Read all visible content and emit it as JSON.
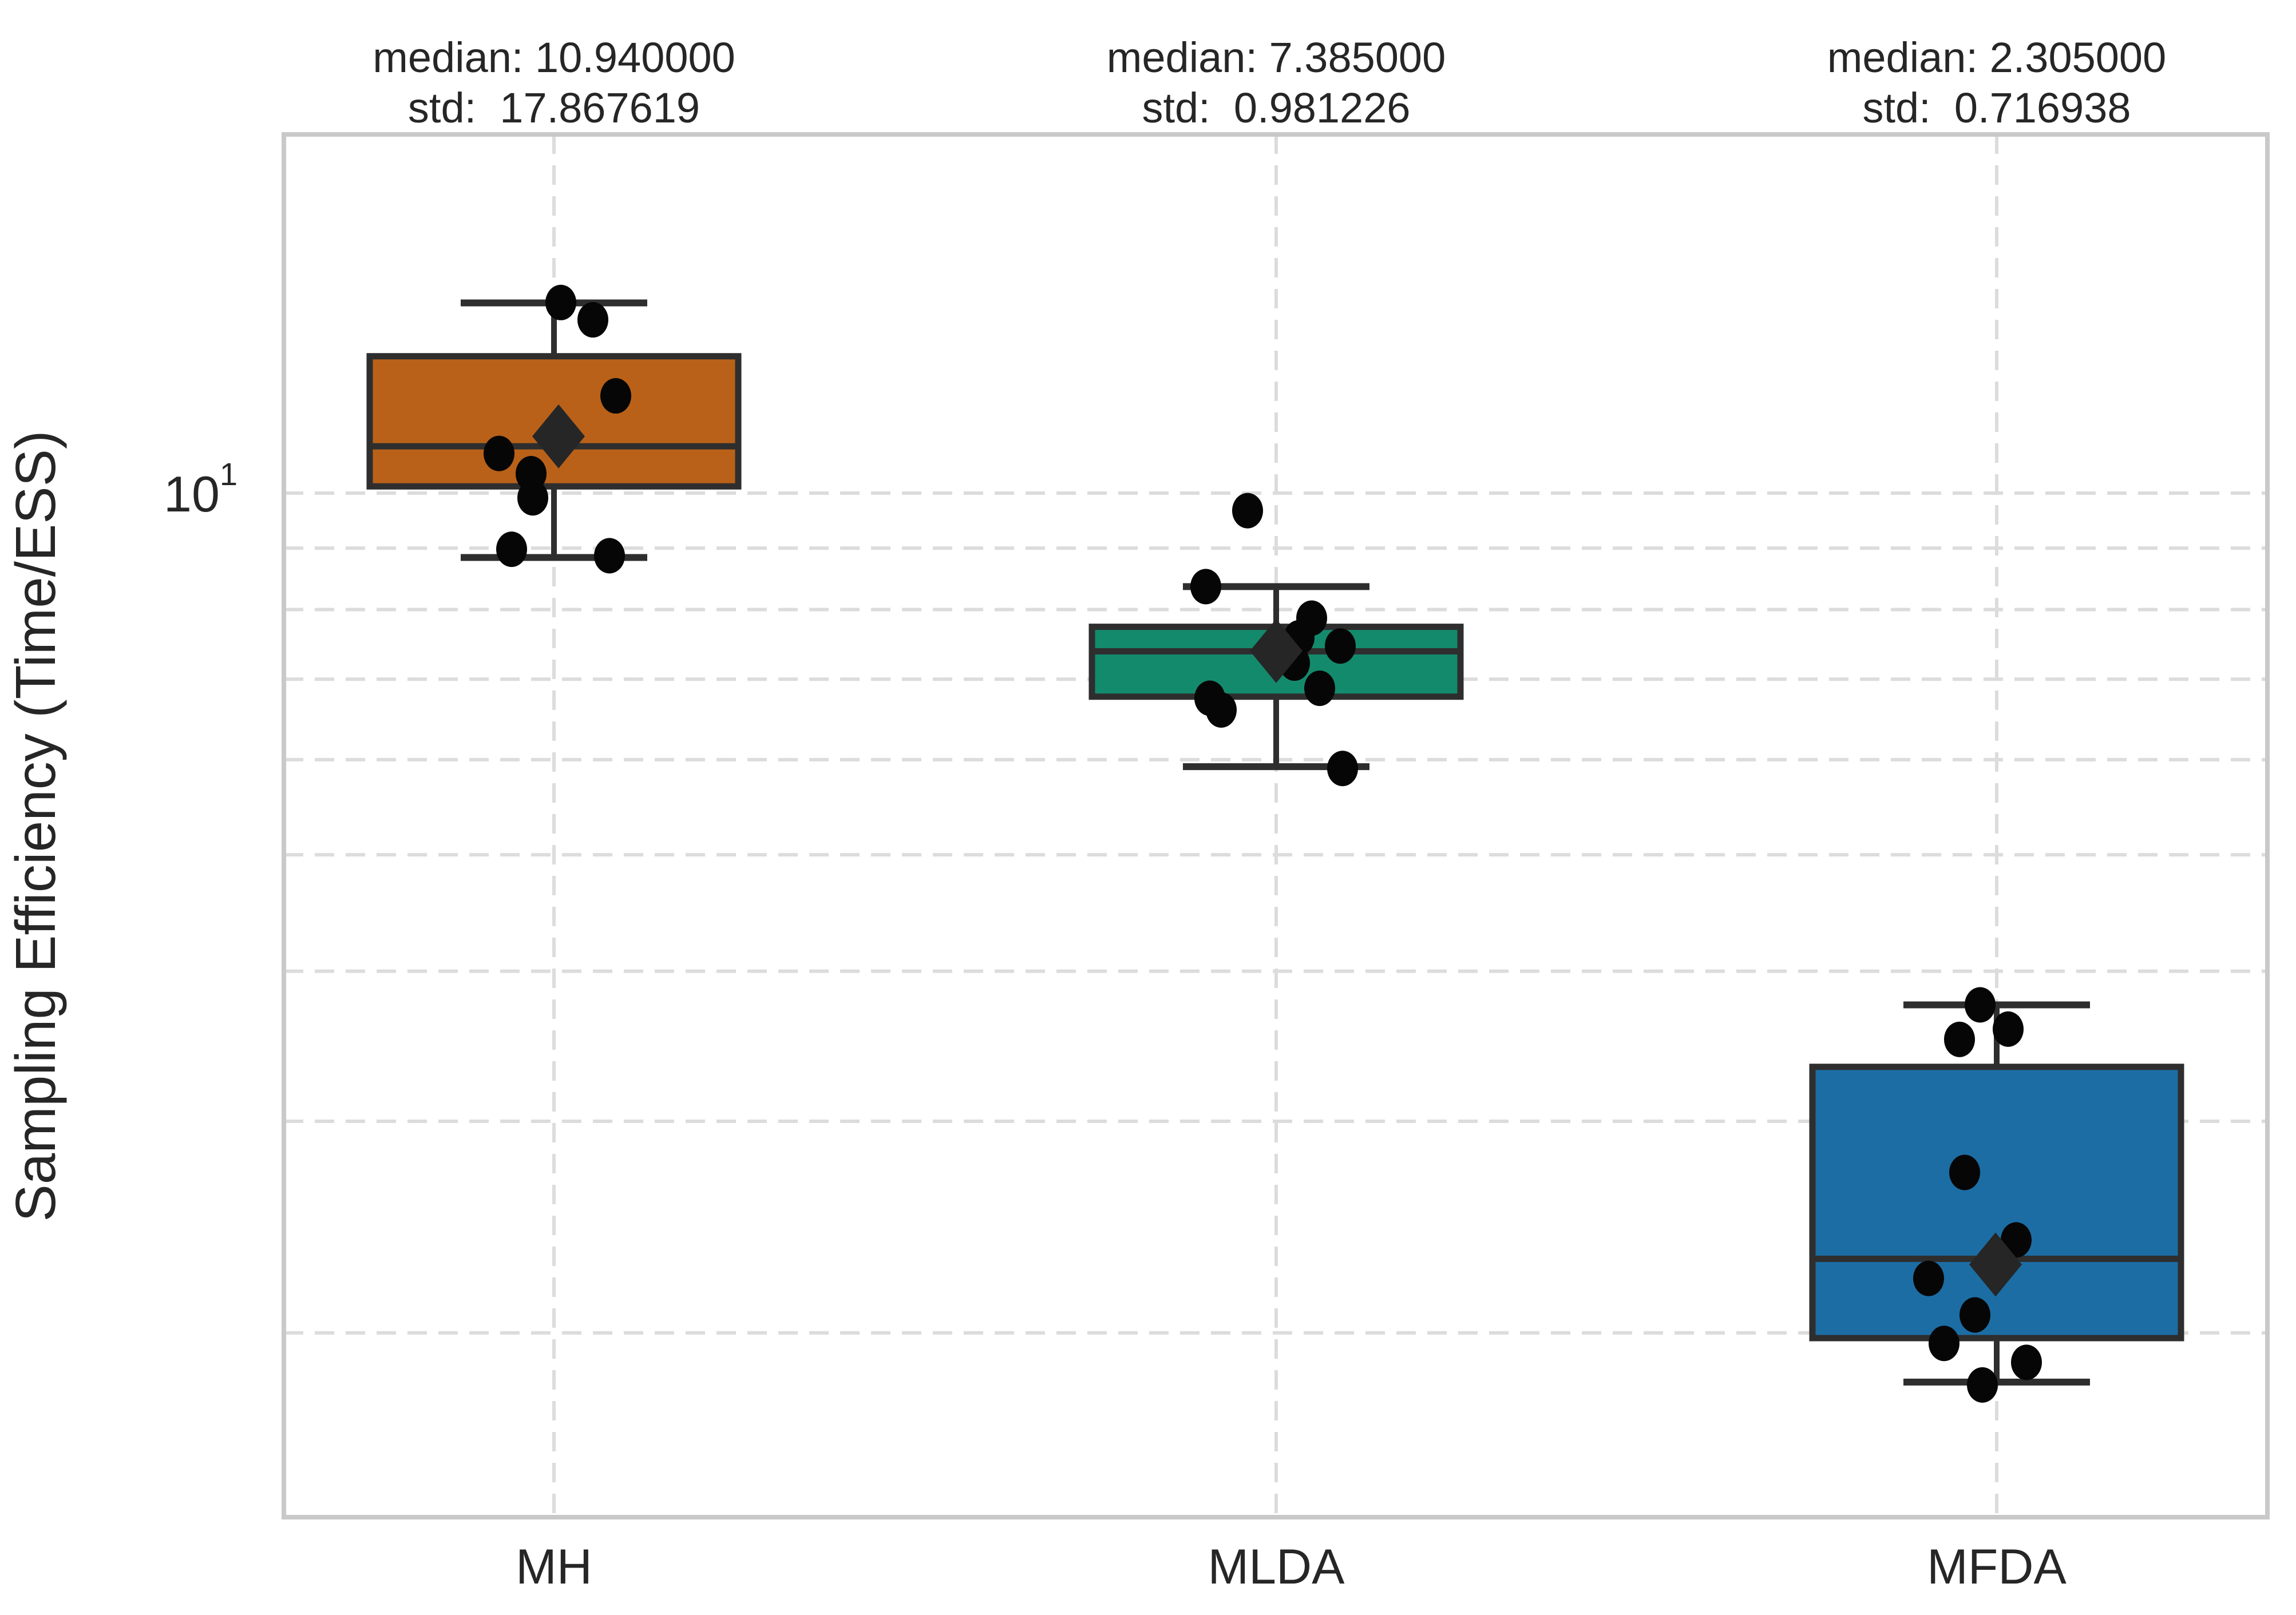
{
  "figure": {
    "ylabel": "Sampling Efficiency (Time/ESS)",
    "ytick_base": "10",
    "ytick_exp": "1",
    "annotations": [
      {
        "median": "median: 10.940000",
        "std": "std:  17.867619"
      },
      {
        "median": "median: 7.385000",
        "std": "std:  0.981226"
      },
      {
        "median": "median: 2.305000",
        "std": "std:  0.716938"
      }
    ],
    "colors": {
      "mh_box": "#B96119",
      "mlda_box": "#148A6D",
      "mfda_box": "#1C6DA4",
      "line": "#2E2E2E",
      "grid": "#DCDCDC",
      "spine": "#C9C9C9",
      "point": "#060606",
      "mean_marker": "#262626",
      "text": "#262626"
    }
  },
  "chart_data": {
    "type": "box",
    "title": "",
    "xlabel": "",
    "ylabel": "Sampling Efficiency (Time/ESS)",
    "yscale": "log",
    "ylim": [
      1.4,
      19.9
    ],
    "grid": "dashed gridlines: horizontal at log minor ticks 2-10, vertical at category centers",
    "legend_position": "none",
    "categories": [
      "MH",
      "MLDA",
      "MFDA"
    ],
    "y_gridlines": [
      2,
      3,
      4,
      5,
      6,
      7,
      8,
      9,
      10
    ],
    "series": [
      {
        "name": "MH",
        "color": "#B96119",
        "median": 10.94,
        "std": 17.867619,
        "mean": 11.15,
        "mean_dx": 8,
        "q1": 10.13,
        "q3": 13.0,
        "whisker_low": 8.84,
        "whisker_high": 14.4,
        "points": [
          {
            "v": 14.41,
            "dx": 12
          },
          {
            "v": 13.94,
            "dx": 68
          },
          {
            "v": 12.05,
            "dx": 108
          },
          {
            "v": 10.79,
            "dx": -96
          },
          {
            "v": 10.38,
            "dx": -40
          },
          {
            "v": 9.91,
            "dx": -37
          },
          {
            "v": 8.98,
            "dx": -74
          },
          {
            "v": 8.87,
            "dx": 97
          }
        ]
      },
      {
        "name": "MLDA",
        "color": "#148A6D",
        "median": 7.385,
        "std": 0.981226,
        "mean": 7.39,
        "mean_dx": 0,
        "q1": 6.77,
        "q3": 7.74,
        "whisker_low": 5.92,
        "whisker_high": 8.36,
        "points": [
          {
            "v": 9.67,
            "dx": -50
          },
          {
            "v": 8.36,
            "dx": -123
          },
          {
            "v": 7.87,
            "dx": 62
          },
          {
            "v": 7.58,
            "dx": 40
          },
          {
            "v": 7.46,
            "dx": 112
          },
          {
            "v": 7.22,
            "dx": 32
          },
          {
            "v": 6.88,
            "dx": 76
          },
          {
            "v": 6.75,
            "dx": -116
          },
          {
            "v": 6.6,
            "dx": -96
          },
          {
            "v": 5.9,
            "dx": 116
          }
        ]
      },
      {
        "name": "MFDA",
        "color": "#1C6DA4",
        "median": 2.305,
        "std": 0.716938,
        "mean": 2.28,
        "mean_dx": -2,
        "q1": 1.98,
        "q3": 3.33,
        "whisker_low": 1.82,
        "whisker_high": 3.75,
        "points": [
          {
            "v": 3.75,
            "dx": -29
          },
          {
            "v": 3.58,
            "dx": 20
          },
          {
            "v": 3.51,
            "dx": -65
          },
          {
            "v": 2.72,
            "dx": -56
          },
          {
            "v": 2.39,
            "dx": 34
          },
          {
            "v": 2.22,
            "dx": -119
          },
          {
            "v": 2.07,
            "dx": -38
          },
          {
            "v": 1.96,
            "dx": -92
          },
          {
            "v": 1.89,
            "dx": 52
          },
          {
            "v": 1.81,
            "dx": -25
          }
        ]
      }
    ]
  }
}
